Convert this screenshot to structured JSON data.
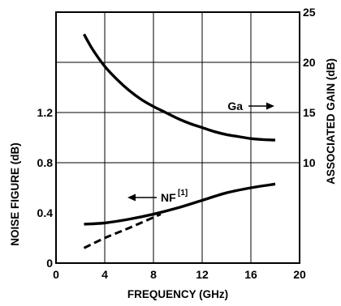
{
  "chart_data": {
    "type": "line",
    "title": "",
    "xlabel": "FREQUENCY (GHz)",
    "ylabel_left": "NOISE FIGURE (dB)",
    "ylabel_right": "ASSOCIATED GAIN (dB)",
    "xlim": [
      0,
      20
    ],
    "ylim_left": [
      0,
      2
    ],
    "ylim_right": [
      0,
      25
    ],
    "x_ticks": [
      0,
      4,
      8,
      12,
      16,
      20
    ],
    "y_ticks_left": [
      0,
      0.4,
      0.8,
      1.2
    ],
    "y_ticks_right": [
      10,
      15,
      20,
      25
    ],
    "grid": true,
    "series": [
      {
        "name": "Ga",
        "axis": "right",
        "style": "solid",
        "x": [
          2.3,
          3,
          4,
          5,
          6,
          7,
          8,
          9,
          10,
          11,
          12,
          13,
          14,
          15,
          16,
          17,
          18
        ],
        "y": [
          22.8,
          21.3,
          19.6,
          18.3,
          17.2,
          16.3,
          15.6,
          15.0,
          14.4,
          13.9,
          13.5,
          13.1,
          12.8,
          12.6,
          12.4,
          12.3,
          12.25
        ]
      },
      {
        "name": "NF[1]",
        "axis": "left",
        "style": "solid",
        "x": [
          2.3,
          4,
          6,
          8,
          10,
          12,
          14,
          16,
          18
        ],
        "y": [
          0.31,
          0.32,
          0.35,
          0.39,
          0.44,
          0.5,
          0.56,
          0.6,
          0.63
        ]
      },
      {
        "name": "",
        "axis": "left",
        "style": "dashed",
        "x": [
          2.3,
          4,
          6,
          8.6
        ],
        "y": [
          0.12,
          0.2,
          0.28,
          0.39
        ]
      }
    ],
    "annotations": [
      {
        "text": "Ga",
        "arrow": "right"
      },
      {
        "text": "NF",
        "superscript": "[1]",
        "arrow": "left"
      }
    ]
  }
}
